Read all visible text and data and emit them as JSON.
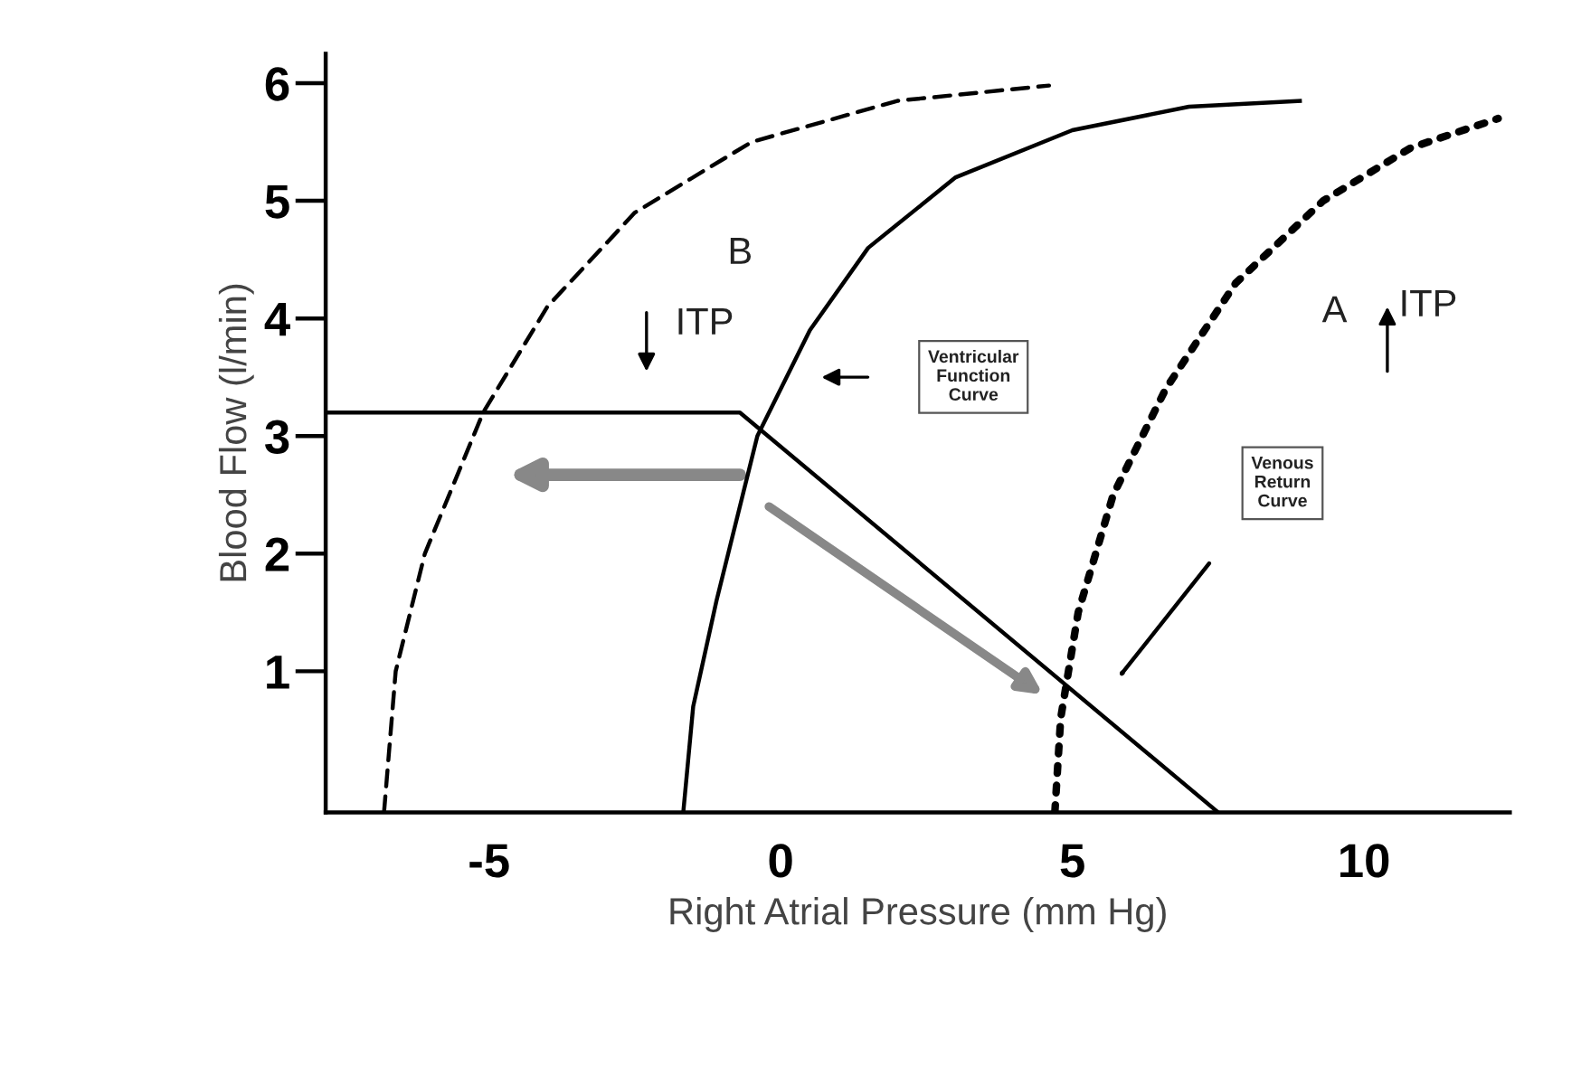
{
  "chart_data": {
    "type": "line",
    "xlabel": "Right Atrial Pressure (mm Hg)",
    "ylabel": "Blood Flow (l/min)",
    "xlim": [
      -7.8,
      12.5
    ],
    "ylim": [
      -0.2,
      6.25
    ],
    "xticks": [
      -5,
      0,
      5,
      10
    ],
    "yticks": [
      1,
      2,
      3,
      4,
      5,
      6
    ],
    "grid": false,
    "legend": false,
    "marker": "none",
    "series": [
      {
        "color": "#000000",
        "line_style": "dashed",
        "x": [
          -6.8,
          -6.6,
          -6.1,
          -5.1,
          -4,
          -2.5,
          -0.5,
          2,
          4.6
        ],
        "values": [
          -0.2,
          1,
          2,
          3.2,
          4.1,
          4.9,
          5.5,
          5.85,
          5.98
        ]
      },
      {
        "color": "#000000",
        "line_style": "solid",
        "x": [
          -1.67,
          -1.5,
          -1.1,
          -0.4,
          0.5,
          1.5,
          3,
          5,
          7,
          8.9
        ],
        "values": [
          -0.2,
          0.7,
          1.6,
          3.0,
          3.9,
          4.6,
          5.2,
          5.6,
          5.8,
          5.85
        ]
      },
      {
        "color": "#000000",
        "line_style": "dotted",
        "x": [
          4.7,
          4.8,
          5.1,
          5.7,
          6.6,
          7.8,
          9.3,
          10.8,
          12.3
        ],
        "values": [
          -0.2,
          0.6,
          1.5,
          2.5,
          3.4,
          4.3,
          5.0,
          5.45,
          5.7
        ]
      },
      {
        "color": "#000000",
        "line_style": "solid",
        "x": [
          -7.8,
          -0.7,
          7.5
        ],
        "values": [
          3.2,
          3.2,
          -0.2
        ]
      }
    ],
    "annotations": [
      "B",
      "ITP",
      "A",
      "ITP",
      "Ventricular\nFunction\nCurve",
      "Venous\nReturn\nCurve"
    ]
  }
}
